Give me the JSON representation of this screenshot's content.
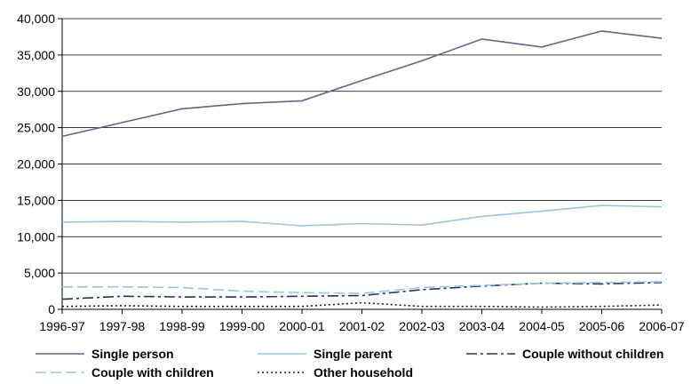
{
  "chart_data": {
    "type": "line",
    "title": "",
    "xlabel": "",
    "ylabel": "",
    "categories": [
      "1996-97",
      "1997-98",
      "1998-99",
      "1999-00",
      "2000-01",
      "2001-02",
      "2002-03",
      "2003-04",
      "2004-05",
      "2005-06",
      "2006-07"
    ],
    "ylim": [
      0,
      40000
    ],
    "yticks": [
      0,
      5000,
      10000,
      15000,
      20000,
      25000,
      30000,
      35000,
      40000
    ],
    "ytick_labels": [
      "0",
      "5,000",
      "10,000",
      "15,000",
      "20,000",
      "25,000",
      "30,000",
      "35,000",
      "40,000"
    ],
    "grid": "horizontal",
    "legend_position": "bottom",
    "series": [
      {
        "name": "Single person",
        "color": "#6a5f8e",
        "dash": "solid",
        "values": [
          23800,
          25700,
          27600,
          28300,
          28700,
          31500,
          34200,
          37200,
          36100,
          38300,
          37300
        ]
      },
      {
        "name": "Single parent",
        "color": "#9cc3e8",
        "dash": "solid",
        "values": [
          12000,
          12100,
          12000,
          12100,
          11500,
          11800,
          11600,
          12800,
          13500,
          14300,
          14100
        ]
      },
      {
        "name": "Couple without children",
        "color": "#2e3156",
        "dash": "dashdot",
        "values": [
          1400,
          1800,
          1700,
          1700,
          1800,
          1900,
          2700,
          3200,
          3600,
          3500,
          3700
        ]
      },
      {
        "name": "Couple with children",
        "color": "#9cc3e8",
        "dash": "longdash",
        "values": [
          3100,
          3100,
          3000,
          2500,
          2300,
          2200,
          3000,
          3300,
          3600,
          3700,
          3800
        ]
      },
      {
        "name": "Other household",
        "color": "#1a1a2e",
        "dash": "dotted",
        "values": [
          400,
          500,
          400,
          400,
          400,
          900,
          400,
          400,
          300,
          400,
          600
        ]
      }
    ]
  }
}
